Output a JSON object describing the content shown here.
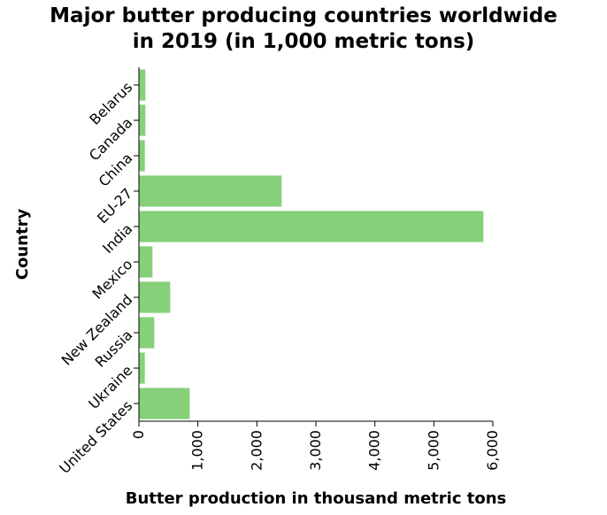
{
  "chart_data": {
    "type": "bar",
    "orientation": "horizontal",
    "title_line1": "Major butter producing countries worldwide",
    "title_line2": "in 2019 (in 1,000 metric tons)",
    "xlabel": "Butter production in thousand metric tons",
    "ylabel": "Country",
    "categories": [
      "Belarus",
      "Canada",
      "China",
      "EU-27",
      "India",
      "Mexico",
      "New Zealand",
      "Russia",
      "Ukraine",
      "United States"
    ],
    "values": [
      110,
      110,
      100,
      2420,
      5840,
      230,
      530,
      260,
      100,
      860
    ],
    "xlim": [
      0,
      6000
    ],
    "xticks": [
      0,
      1000,
      2000,
      3000,
      4000,
      5000,
      6000
    ],
    "xtick_labels": [
      "0",
      "1,000",
      "2,000",
      "3,000",
      "4,000",
      "5,000",
      "6,000"
    ],
    "bar_color": "#86d07a",
    "grid": false,
    "legend": "none"
  }
}
